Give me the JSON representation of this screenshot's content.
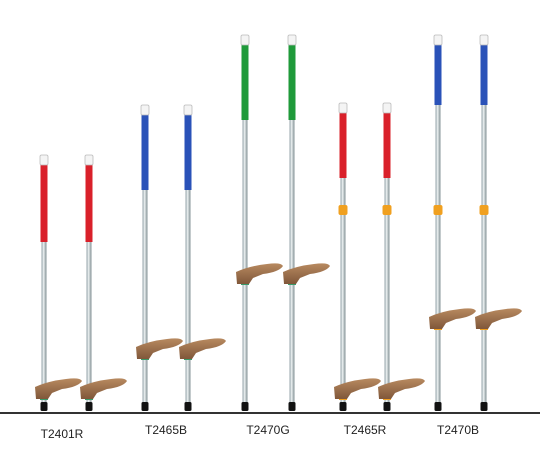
{
  "products": [
    {
      "label": "T2401R"
    },
    {
      "label": "T2465B"
    },
    {
      "label": "T2470G"
    },
    {
      "label": "T2465R"
    },
    {
      "label": "T2470B"
    }
  ]
}
